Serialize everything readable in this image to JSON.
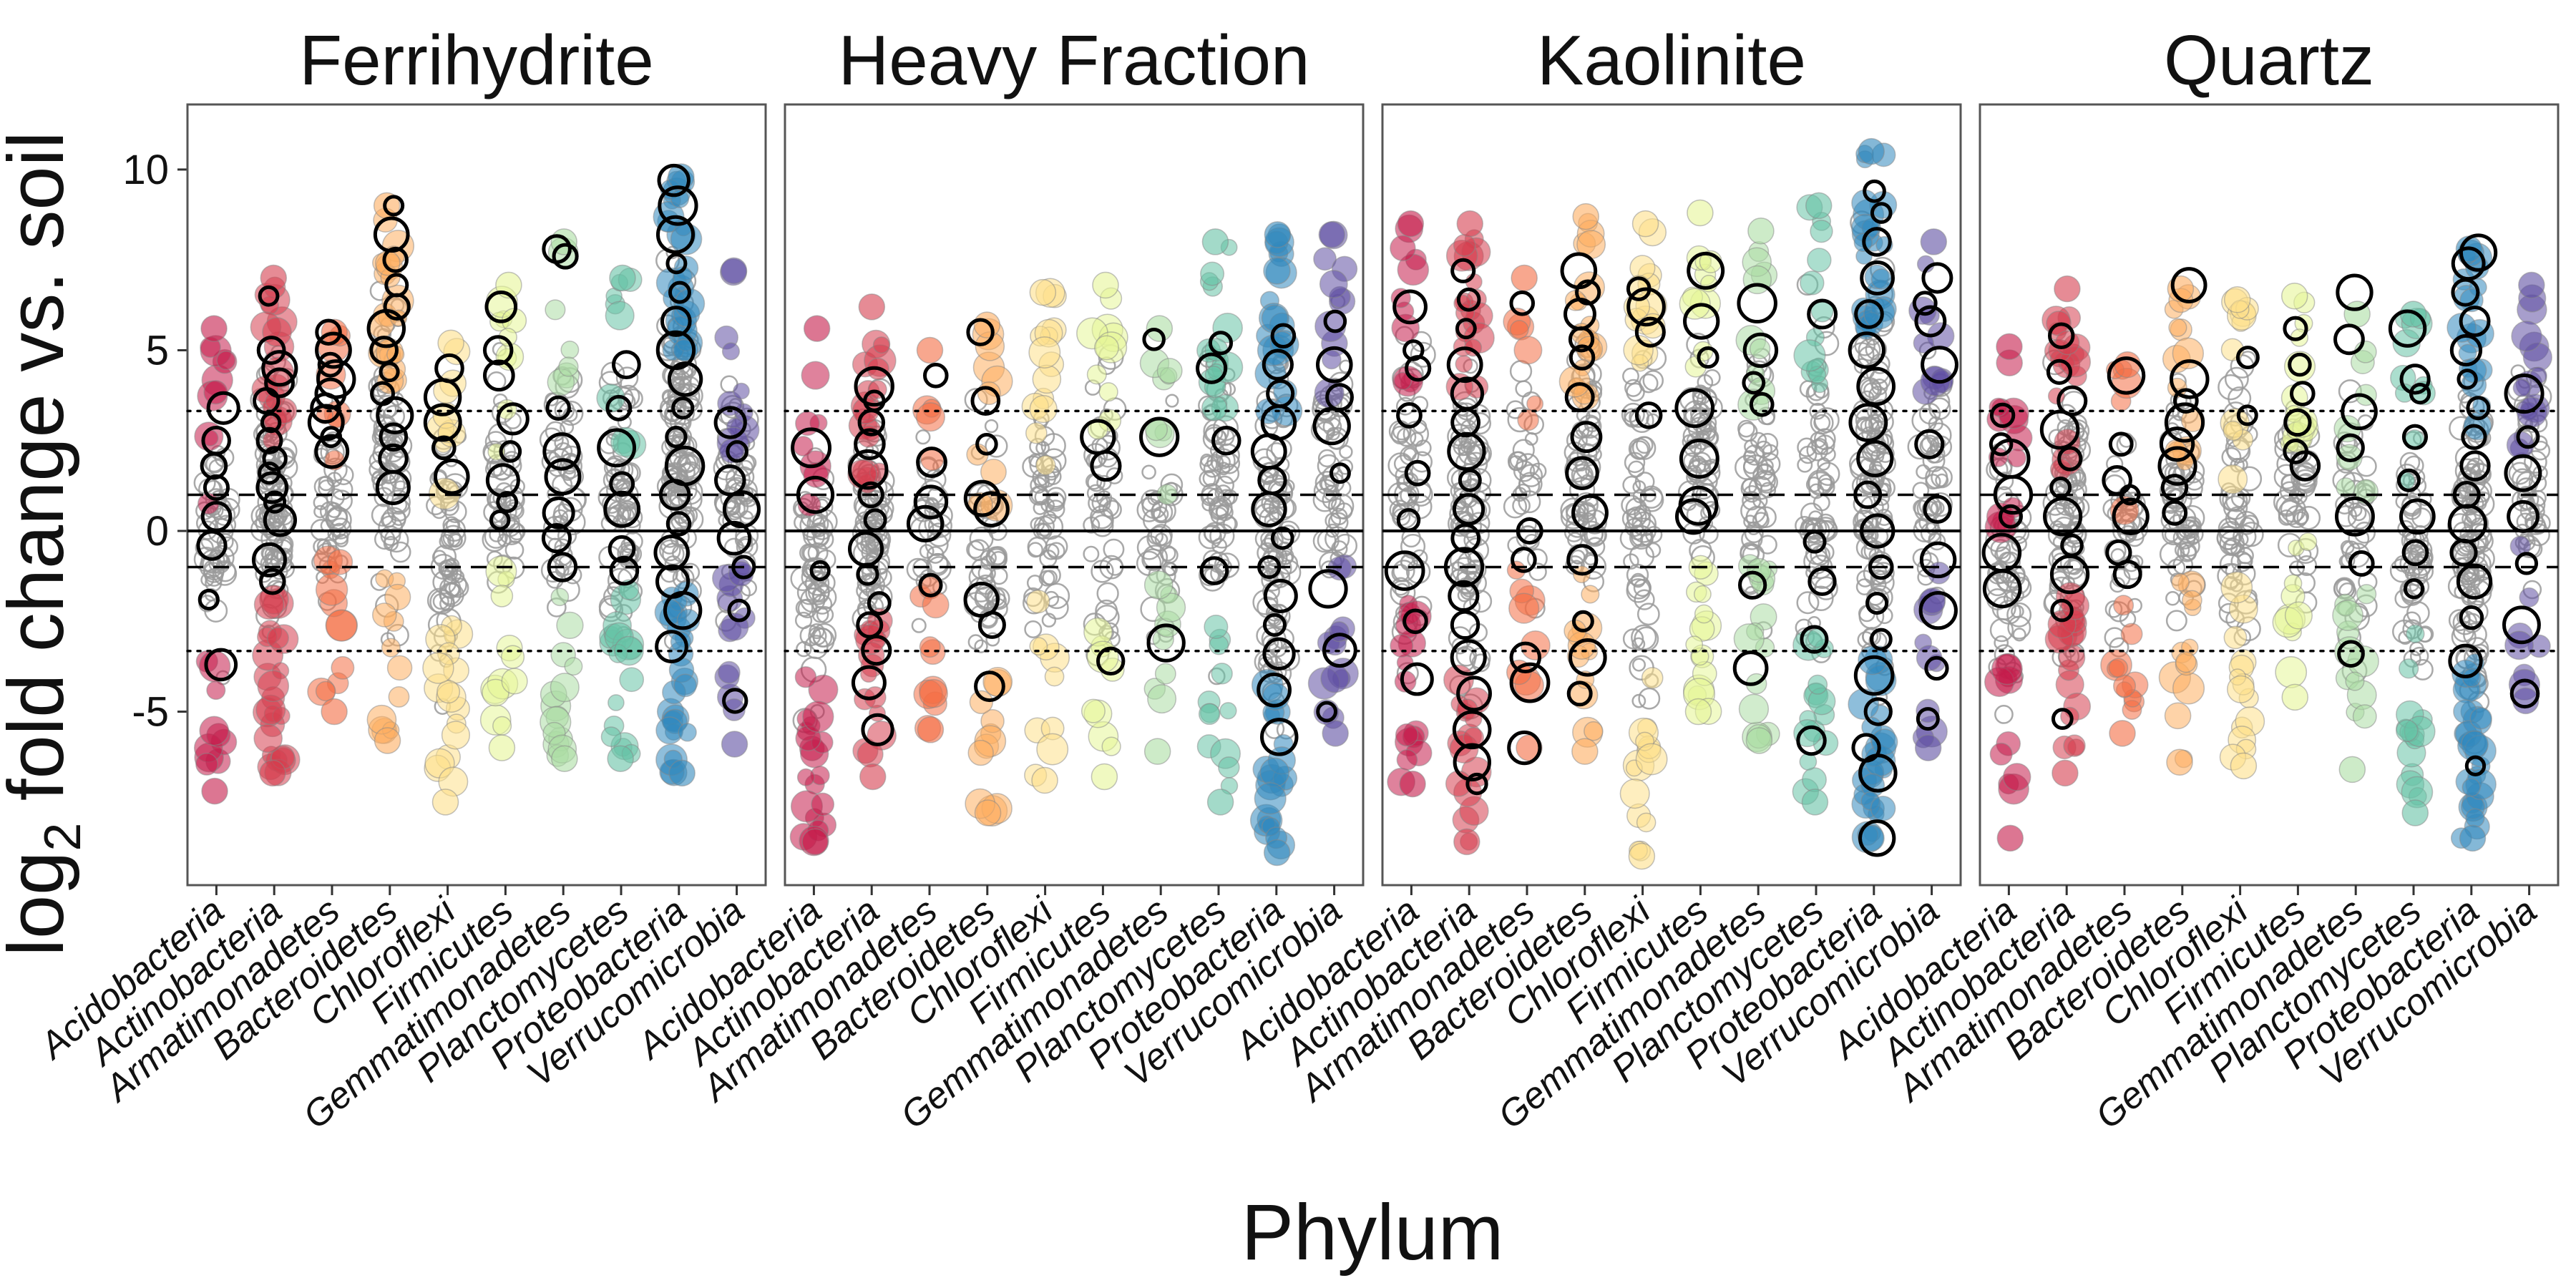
{
  "chart_data": {
    "type": "scatter",
    "xlabel": "Phylum",
    "ylabel_parts": [
      "log",
      "2",
      " fold change vs. soil"
    ],
    "ylim": [
      -9.8,
      11.8
    ],
    "yticks": [
      10,
      5,
      0,
      -5
    ],
    "ytick_labels": [
      "10",
      "5",
      "0",
      "-5"
    ],
    "grid": false,
    "reference_lines": [
      {
        "y": 0,
        "style": "solid"
      },
      {
        "y": 1,
        "style": "dashed"
      },
      {
        "y": -1,
        "style": "dashed"
      },
      {
        "y": 3.32,
        "style": "dotted"
      },
      {
        "y": -3.32,
        "style": "dotted"
      }
    ],
    "categories": [
      "Acidobacteria",
      "Actinobacteria",
      "Armatimonadetes",
      "Bacteroidetes",
      "Chloroflexi",
      "Firmicutes",
      "Gemmatimonadetes",
      "Planctomycetes",
      "Proteobacteria",
      "Verrucomicrobia"
    ],
    "phylum_colors": [
      "#c51b4a",
      "#d53e4f",
      "#f46d43",
      "#fdae61",
      "#fee08b",
      "#e6f598",
      "#abdda4",
      "#66c2a5",
      "#3288bd",
      "#5e4fa2"
    ],
    "facets": [
      {
        "title": "Ferrihydrite",
        "ranges": [
          [
            -7.2,
            5.6
          ],
          [
            -6.7,
            7.0
          ],
          [
            -5.0,
            5.5
          ],
          [
            -5.8,
            9.0
          ],
          [
            -7.5,
            5.2
          ],
          [
            -6.0,
            6.8
          ],
          [
            -6.3,
            8.0
          ],
          [
            -6.3,
            7.0
          ],
          [
            -6.7,
            9.8
          ],
          [
            -5.9,
            7.2
          ]
        ],
        "counts": [
          45,
          95,
          40,
          70,
          55,
          45,
          45,
          60,
          120,
          50
        ],
        "highlighted": [
          [
            -3.7,
            -1.9,
            -0.4,
            0.4,
            1.2,
            1.8,
            2.5,
            3.4
          ],
          [
            -1.4,
            -0.8,
            0.3,
            0.8,
            1.2,
            1.6,
            2.0,
            2.5,
            3.0,
            3.6,
            4.1,
            4.5,
            5.0,
            6.5
          ],
          [
            2.2,
            2.6,
            3.0,
            3.4,
            3.8,
            4.2,
            4.6,
            5.0,
            5.5
          ],
          [
            1.2,
            2.0,
            2.6,
            3.2,
            3.8,
            4.4,
            5.0,
            5.6,
            6.2,
            6.8,
            7.5,
            8.2,
            9.0
          ],
          [
            1.5,
            2.3,
            3.0,
            3.7,
            4.5
          ],
          [
            0.3,
            0.8,
            1.4,
            2.2,
            3.1,
            4.3,
            5.0,
            6.2
          ],
          [
            -1.0,
            -0.2,
            0.5,
            1.5,
            2.2,
            3.4,
            7.6,
            7.8
          ],
          [
            -1.1,
            -0.5,
            0.6,
            1.3,
            2.3,
            3.4,
            4.6
          ],
          [
            -3.2,
            -2.2,
            -1.4,
            -0.6,
            0.2,
            1.0,
            1.8,
            2.6,
            3.4,
            4.2,
            5.0,
            5.8,
            6.6,
            7.4,
            8.2,
            9.0,
            9.7
          ],
          [
            -4.7,
            -2.2,
            -1.0,
            -0.2,
            0.6,
            1.4,
            2.2,
            3.0
          ]
        ]
      },
      {
        "title": "Heavy Fraction",
        "ranges": [
          [
            -8.6,
            5.6
          ],
          [
            -6.8,
            6.2
          ],
          [
            -5.5,
            5.0
          ],
          [
            -7.8,
            5.7
          ],
          [
            -6.9,
            6.6
          ],
          [
            -6.8,
            6.8
          ],
          [
            -6.1,
            5.6
          ],
          [
            -7.5,
            8.0
          ],
          [
            -8.9,
            8.2
          ],
          [
            -5.6,
            8.2
          ]
        ],
        "counts": [
          60,
          70,
          30,
          45,
          50,
          40,
          35,
          60,
          90,
          50
        ],
        "highlighted": [
          [
            -1.1,
            1.0,
            2.3
          ],
          [
            -5.5,
            -4.2,
            -3.3,
            -2.6,
            -2.0,
            -1.2,
            -0.5,
            0.3,
            1.0,
            1.7,
            2.4,
            3.0,
            3.6,
            4.0
          ],
          [
            -1.5,
            0.2,
            0.8,
            1.9,
            4.3
          ],
          [
            -4.3,
            -2.6,
            -1.9,
            0.6,
            0.9,
            2.4,
            3.6,
            5.5
          ],
          [],
          [
            -3.6,
            1.8,
            2.6
          ],
          [
            -3.1,
            2.6,
            5.3
          ],
          [
            -1.1,
            2.5,
            4.5,
            5.2
          ],
          [
            -5.7,
            -4.4,
            -3.4,
            -2.6,
            -1.8,
            -1.0,
            -0.2,
            0.6,
            1.4,
            2.2,
            3.0,
            3.8,
            4.6,
            5.4
          ],
          [
            -5.0,
            -3.3,
            -1.6,
            1.6,
            2.9,
            3.7,
            4.6,
            5.8
          ]
        ]
      },
      {
        "title": "Kaolinite",
        "ranges": [
          [
            -7.0,
            8.5
          ],
          [
            -8.6,
            8.5
          ],
          [
            -6.0,
            7.0
          ],
          [
            -6.1,
            8.7
          ],
          [
            -9.0,
            8.5
          ],
          [
            -5.0,
            8.8
          ],
          [
            -5.8,
            8.3
          ],
          [
            -7.5,
            9.0
          ],
          [
            -8.5,
            10.5
          ],
          [
            -6.0,
            8.0
          ]
        ],
        "counts": [
          55,
          80,
          30,
          65,
          60,
          55,
          50,
          60,
          110,
          45
        ],
        "highlighted": [
          [
            -4.1,
            -2.5,
            -1.1,
            0.3,
            1.6,
            3.2,
            4.5,
            5.0,
            6.2
          ],
          [
            -7.0,
            -6.4,
            -5.5,
            -4.5,
            -3.5,
            -2.6,
            -1.8,
            -1.0,
            -0.2,
            0.6,
            1.4,
            2.2,
            3.0,
            3.8,
            4.6,
            5.6,
            6.4,
            7.2
          ],
          [
            -6.0,
            -4.2,
            -3.5,
            -0.8,
            0.0,
            6.3
          ],
          [
            -4.5,
            -3.5,
            -2.5,
            -0.8,
            0.5,
            1.6,
            2.6,
            3.7,
            4.8,
            5.3,
            6.0,
            6.6,
            7.2
          ],
          [
            3.2,
            5.5,
            6.2,
            6.7
          ],
          [
            0.4,
            0.7,
            2.0,
            3.4,
            4.8,
            5.8,
            7.2
          ],
          [
            -3.8,
            -1.5,
            3.5,
            4.1,
            5.0,
            6.3
          ],
          [
            -5.8,
            -3.0,
            -1.4,
            -0.3,
            6.0
          ],
          [
            -8.5,
            -6.7,
            -6.0,
            -5.0,
            -4.0,
            -3.0,
            -2.0,
            -1.0,
            0.0,
            1.0,
            2.0,
            3.0,
            4.0,
            5.0,
            6.0,
            7.0,
            8.0,
            8.8,
            9.4
          ],
          [
            -5.2,
            -3.8,
            -2.2,
            -0.8,
            0.6,
            2.4,
            4.6,
            5.8,
            6.3,
            7.0
          ]
        ]
      },
      {
        "title": "Quartz",
        "ranges": [
          [
            -8.5,
            5.1
          ],
          [
            -6.7,
            6.7
          ],
          [
            -5.6,
            4.6
          ],
          [
            -6.4,
            6.7
          ],
          [
            -6.5,
            6.4
          ],
          [
            -4.6,
            6.5
          ],
          [
            -6.6,
            6.0
          ],
          [
            -7.8,
            6.0
          ],
          [
            -8.5,
            7.8
          ],
          [
            -4.7,
            6.8
          ]
        ],
        "counts": [
          50,
          80,
          35,
          55,
          55,
          45,
          40,
          55,
          100,
          45
        ],
        "highlighted": [
          [
            -1.6,
            -0.6,
            0.4,
            1.0,
            2.0,
            2.4,
            3.2
          ],
          [
            -5.2,
            -2.2,
            -1.2,
            -0.4,
            0.4,
            1.2,
            2.0,
            2.8,
            3.6,
            4.4,
            5.4
          ],
          [
            -1.2,
            -0.6,
            0.4,
            1.0,
            1.4,
            2.4,
            4.3
          ],
          [
            0.5,
            1.2,
            1.8,
            2.4,
            3.0,
            3.6,
            4.2,
            6.8
          ],
          [
            3.2,
            4.8
          ],
          [
            1.8,
            2.2,
            3.0,
            3.8,
            4.6,
            5.6
          ],
          [
            -3.4,
            -0.9,
            0.4,
            2.3,
            3.3,
            5.3,
            6.6
          ],
          [
            -1.6,
            -0.6,
            0.4,
            1.4,
            2.6,
            3.8,
            4.2,
            5.6
          ],
          [
            -6.5,
            -3.6,
            -2.4,
            -1.4,
            -0.6,
            0.2,
            1.0,
            1.8,
            2.6,
            3.4,
            4.2,
            5.0,
            5.8,
            6.6,
            7.4,
            7.7
          ],
          [
            -4.5,
            -2.6,
            -0.9,
            0.4,
            1.6,
            2.6,
            3.8
          ]
        ]
      }
    ]
  }
}
